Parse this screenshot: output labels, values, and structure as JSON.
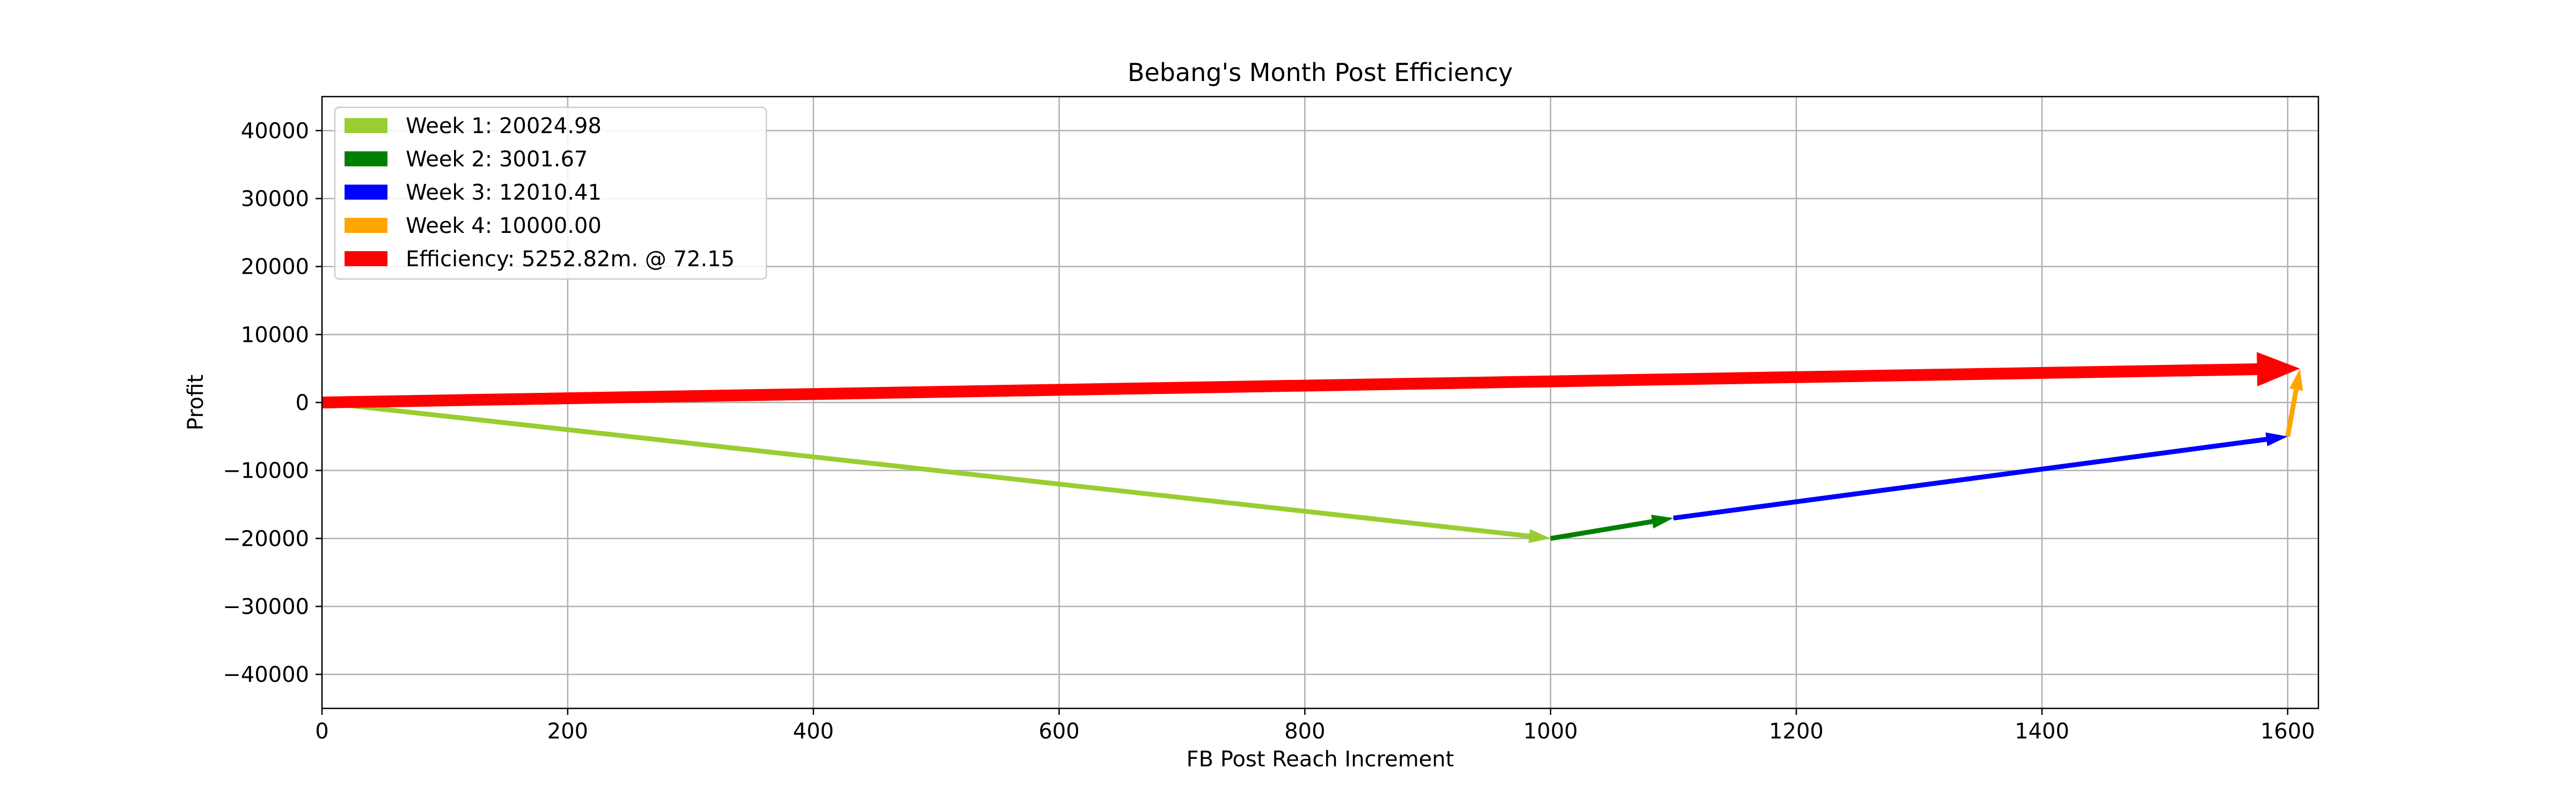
{
  "chart_data": {
    "type": "vector",
    "title": "Bebang's Month Post Efficiency",
    "xlabel": "FB Post Reach Increment",
    "ylabel": "Profit",
    "xlim": [
      0,
      1625
    ],
    "ylim": [
      -45000,
      45000
    ],
    "xticks": [
      0,
      200,
      400,
      600,
      800,
      1000,
      1200,
      1400,
      1600
    ],
    "yticks": [
      -40000,
      -30000,
      -20000,
      -10000,
      0,
      10000,
      20000,
      30000,
      40000
    ],
    "xtick_labels": [
      "0",
      "200",
      "400",
      "600",
      "800",
      "1000",
      "1200",
      "1400",
      "1600"
    ],
    "ytick_labels": [
      "−40000",
      "−30000",
      "−20000",
      "−10000",
      "0",
      "10000",
      "20000",
      "30000",
      "40000"
    ],
    "grid": true,
    "legend_position": "top-left",
    "series": [
      {
        "name": "Week 1: 20024.98",
        "color": "#9acd32",
        "x0": 0,
        "y0": 0,
        "x1": 1000,
        "y1": -20000,
        "width": "thin"
      },
      {
        "name": "Week 2: 3001.67",
        "color": "#008000",
        "x0": 1000,
        "y0": -20000,
        "x1": 1100,
        "y1": -17000,
        "width": "thin"
      },
      {
        "name": "Week 3: 12010.41",
        "color": "#0000ff",
        "x0": 1100,
        "y0": -17000,
        "x1": 1600,
        "y1": -5000,
        "width": "thin"
      },
      {
        "name": "Week 4: 10000.00",
        "color": "#ffa500",
        "x0": 1600,
        "y0": -5000,
        "x1": 1610,
        "y1": 5000,
        "width": "thin"
      },
      {
        "name": "Efficiency: 5252.82m. @ 72.15",
        "color": "#ff0000",
        "x0": 0,
        "y0": 0,
        "x1": 1610,
        "y1": 5000,
        "width": "thick"
      }
    ]
  }
}
